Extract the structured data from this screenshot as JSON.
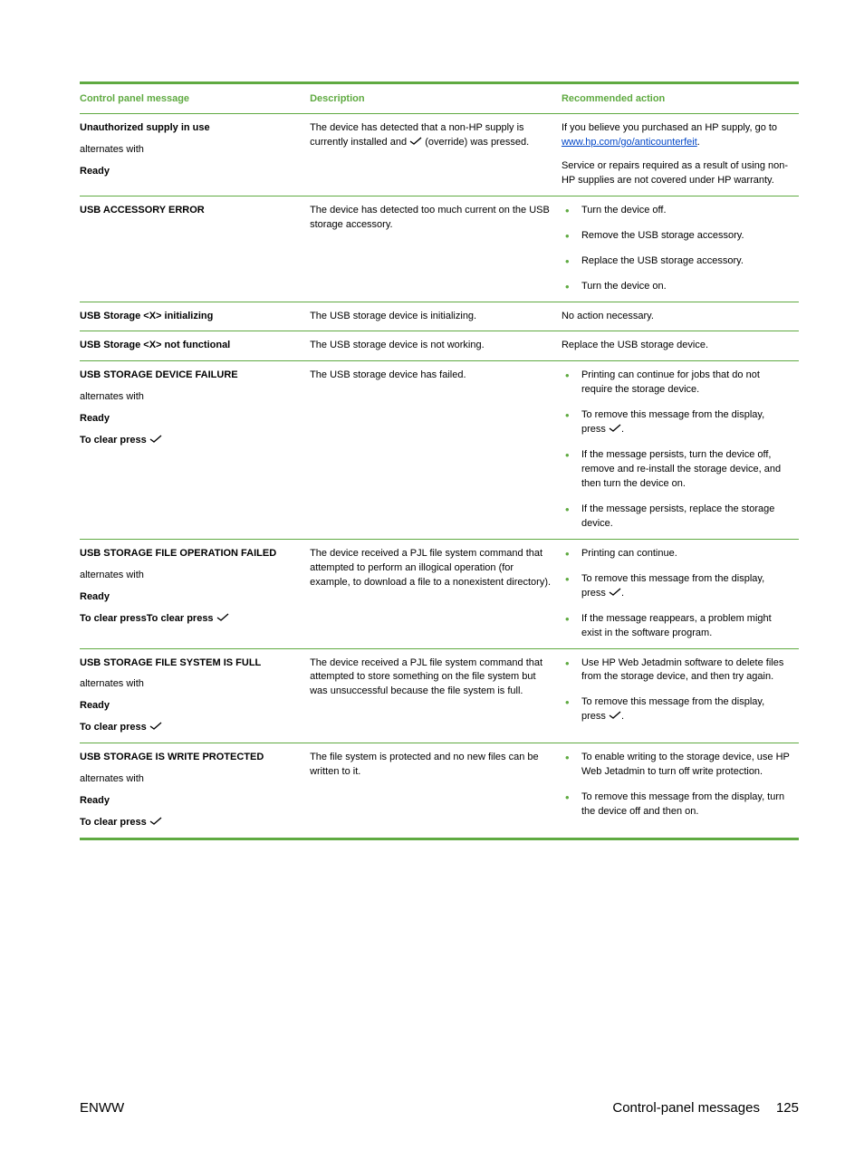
{
  "colors": {
    "accent": "#5faa41",
    "link": "#0046c8",
    "text": "#000000",
    "background": "#ffffff"
  },
  "checkmark_svg": "<svg class=\"check\" width=\"14\" height=\"10\" viewBox=\"0 0 14 10\"><path d=\"M1 5 L5 8 L13 1\" stroke=\"#000\" stroke-width=\"1.3\" fill=\"none\"/></svg>",
  "table": {
    "headers": {
      "col1": "Control panel message",
      "col2": "Description",
      "col3": "Recommended action"
    },
    "rows": [
      {
        "message": [
          {
            "text": "Unauthorized supply in use",
            "bold": true
          },
          {
            "text": "alternates with",
            "bold": false
          },
          {
            "text": "Ready",
            "bold": true
          }
        ],
        "description": "The device has detected that a non-HP supply is currently installed and {CHECK} (override) was pressed.",
        "action_paragraphs": [
          {
            "html": "If you believe you purchased an HP supply, go to <a class=\"link\" href=\"#\" data-name=\"anticounterfeit-link\" data-interactable=\"true\">www.hp.com/go/anticounterfeit</a>."
          },
          {
            "html": "Service or repairs required as a result of using non-HP supplies are not covered under HP warranty."
          }
        ]
      },
      {
        "message": [
          {
            "text": "USB ACCESSORY ERROR",
            "bold": true
          }
        ],
        "description": "The device has detected too much current on the USB storage accessory.",
        "action_list": [
          "Turn the device off.",
          "Remove the USB storage accessory.",
          "Replace the USB storage accessory.",
          "Turn the device on."
        ]
      },
      {
        "message": [
          {
            "text": "USB Storage <X> initializing",
            "bold": true
          }
        ],
        "description": "The USB storage device is initializing.",
        "action_paragraphs": [
          {
            "html": "No action necessary."
          }
        ]
      },
      {
        "message": [
          {
            "text": "USB Storage <X> not functional",
            "bold": true
          }
        ],
        "description": "The USB storage device is not working.",
        "action_paragraphs": [
          {
            "html": "Replace the USB storage device."
          }
        ]
      },
      {
        "message": [
          {
            "text": "USB STORAGE DEVICE FAILURE",
            "bold": true
          },
          {
            "text": "alternates with",
            "bold": false
          },
          {
            "text": "Ready",
            "bold": true
          },
          {
            "text": "To clear press {CHECK}",
            "bold": true
          }
        ],
        "description": "The USB storage device has failed.",
        "action_list": [
          "Printing can continue for jobs that do not require the storage device.",
          "To remove this message from the display, press {CHECK}.",
          "If the message persists, turn the device off, remove and re-install the storage device, and then turn the device on.",
          "If the message persists, replace the storage device."
        ]
      },
      {
        "message": [
          {
            "text": "USB STORAGE FILE OPERATION FAILED",
            "bold": true
          },
          {
            "text": "alternates with",
            "bold": false
          },
          {
            "text": "Ready",
            "bold": true
          },
          {
            "text": "To clear pressTo clear press  {CHECK}",
            "bold": true
          }
        ],
        "description": "The device received a PJL file system command that attempted to perform an illogical operation (for example, to download a file to a nonexistent directory).",
        "action_list": [
          "Printing can continue.",
          "To remove this message from the display, press {CHECK}.",
          "If the message reappears, a problem might exist in the software program."
        ]
      },
      {
        "message": [
          {
            "text": "USB STORAGE FILE SYSTEM IS FULL",
            "bold": true
          },
          {
            "text": "alternates with",
            "bold": false
          },
          {
            "text": "Ready",
            "bold": true
          },
          {
            "text": "To clear press {CHECK}",
            "bold": true
          }
        ],
        "description": "The device received a PJL file system command that attempted to store something on the file system but was unsuccessful because the file system is full.",
        "action_list": [
          "Use HP Web Jetadmin software to delete files from the storage device, and then try again.",
          "To remove this message from the display, press {CHECK}."
        ]
      },
      {
        "message": [
          {
            "text": "USB STORAGE IS WRITE PROTECTED",
            "bold": true
          },
          {
            "text": "alternates with",
            "bold": false
          },
          {
            "text": "Ready",
            "bold": true
          },
          {
            "text": "To clear press  {CHECK}",
            "bold": true
          }
        ],
        "description": "The file system is protected and no new files can be written to it.",
        "action_list": [
          "To enable writing to the storage device, use HP Web Jetadmin to turn off write protection.",
          "To remove this message from the display, turn the device off and then on."
        ]
      }
    ]
  },
  "footer": {
    "left": "ENWW",
    "right_label": "Control-panel messages",
    "page_number": "125"
  }
}
